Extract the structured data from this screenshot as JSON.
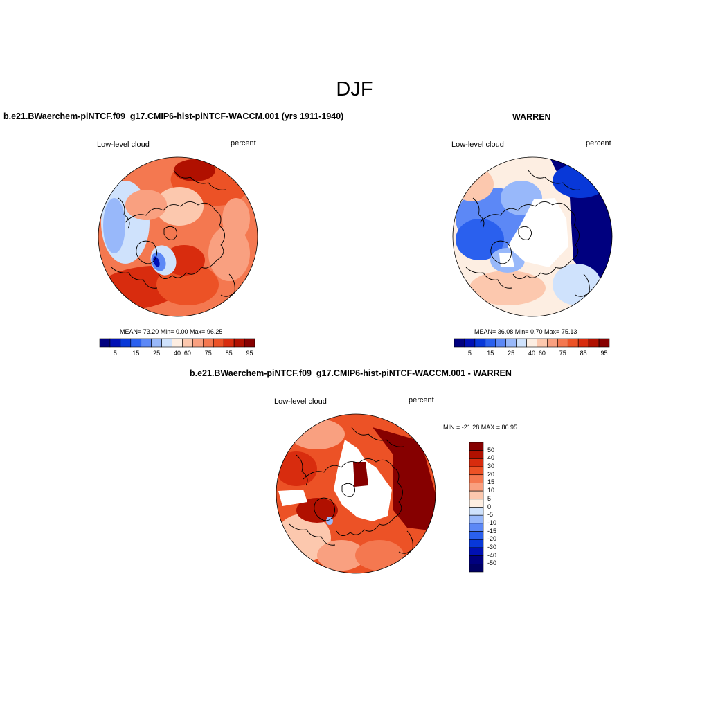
{
  "page": {
    "title": "DJF"
  },
  "panels": [
    {
      "header": "b.e21.BWaerchem-piNTCF.f09_g17.CMIP6-hist-piNTCF-WACCM.001 (yrs 1911-1940)",
      "left_label": "Low-level cloud",
      "right_label": "percent",
      "stats": "MEAN=  73.20  Min=   0.00  Max=  96.25"
    },
    {
      "header": "WARREN",
      "left_label": "Low-level cloud",
      "right_label": "percent",
      "stats": "MEAN=  36.08  Min=   0.70  Max=  75.13"
    },
    {
      "header": "b.e21.BWaerchem-piNTCF.f09_g17.CMIP6-hist-piNTCF-WACCM.001 - WARREN",
      "left_label": "Low-level cloud",
      "right_label": "percent",
      "stats": "MIN = -21.28 MAX =  86.95"
    }
  ],
  "chart_data": [
    {
      "type": "heatmap",
      "projection": "north-polar-stereographic",
      "colorbar": {
        "orientation": "horizontal",
        "tick_labels": [
          "5",
          "15",
          "25",
          "40",
          "60",
          "75",
          "85",
          "95"
        ],
        "colors": [
          "#00007f",
          "#0010b4",
          "#0838d8",
          "#2a60ee",
          "#5c88f6",
          "#98b8fa",
          "#cfe2fc",
          "#fdeee2",
          "#fcc8ae",
          "#f9a080",
          "#f47850",
          "#ec5226",
          "#d82c0e",
          "#b01000",
          "#860000"
        ]
      },
      "mean": 73.2,
      "min": 0.0,
      "max": 96.25
    },
    {
      "type": "heatmap",
      "projection": "north-polar-stereographic",
      "colorbar": {
        "orientation": "horizontal",
        "tick_labels": [
          "5",
          "15",
          "25",
          "40",
          "60",
          "75",
          "85",
          "95"
        ],
        "colors": [
          "#00007f",
          "#0010b4",
          "#0838d8",
          "#2a60ee",
          "#5c88f6",
          "#98b8fa",
          "#cfe2fc",
          "#fdeee2",
          "#fcc8ae",
          "#f9a080",
          "#f47850",
          "#ec5226",
          "#d82c0e",
          "#b01000",
          "#860000"
        ]
      },
      "mean": 36.08,
      "min": 0.7,
      "max": 75.13
    },
    {
      "type": "heatmap",
      "projection": "north-polar-stereographic",
      "colorbar": {
        "orientation": "vertical",
        "tick_labels": [
          "50",
          "40",
          "30",
          "20",
          "15",
          "10",
          "5",
          "0",
          "-5",
          "-10",
          "-15",
          "-20",
          "-30",
          "-40",
          "-50"
        ],
        "colors": [
          "#860000",
          "#b01000",
          "#d82c0e",
          "#ec5226",
          "#f47850",
          "#f9a080",
          "#fcc8ae",
          "#fdeee2",
          "#cfe2fc",
          "#98b8fa",
          "#5c88f6",
          "#2a60ee",
          "#0838d8",
          "#0010b4",
          "#00007f",
          "#000064"
        ]
      },
      "min": -21.28,
      "max": 86.95
    }
  ]
}
